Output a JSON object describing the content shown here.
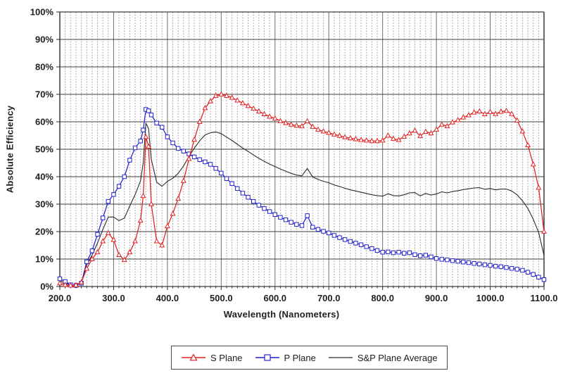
{
  "chart_data": {
    "type": "line",
    "title": "",
    "xlabel": "Wavelength (Nanometers)",
    "ylabel": "Absolute Efficiency",
    "xlim": [
      200,
      1100
    ],
    "ylim": [
      0,
      100
    ],
    "grid": true,
    "x_minor_grid_step": 10,
    "x_major_grid_step": 100,
    "y_grid_step": 10,
    "legend_position": "bottom",
    "x_ticks": {
      "values": [
        200,
        300,
        400,
        500,
        600,
        700,
        800,
        900,
        1000,
        1100
      ],
      "labels": [
        "200.0",
        "300.0",
        "400.0",
        "500.0",
        "600.0",
        "700.0",
        "800.0",
        "900.0",
        "1000.0",
        "1100.0"
      ]
    },
    "y_ticks": {
      "values": [
        0,
        10,
        20,
        30,
        40,
        50,
        60,
        70,
        80,
        90,
        100
      ],
      "labels": [
        "0%",
        "10%",
        "20%",
        "30%",
        "40%",
        "50%",
        "60%",
        "70%",
        "80%",
        "90%",
        "100%"
      ]
    },
    "x": [
      200,
      210,
      220,
      230,
      240,
      250,
      260,
      270,
      280,
      290,
      300,
      310,
      320,
      330,
      340,
      350,
      355,
      360,
      365,
      370,
      380,
      390,
      400,
      410,
      420,
      430,
      440,
      450,
      460,
      470,
      480,
      490,
      500,
      510,
      520,
      530,
      540,
      550,
      560,
      570,
      580,
      590,
      600,
      610,
      620,
      630,
      640,
      650,
      660,
      670,
      680,
      690,
      700,
      710,
      720,
      730,
      740,
      750,
      760,
      770,
      780,
      790,
      800,
      810,
      820,
      830,
      840,
      850,
      860,
      870,
      880,
      890,
      900,
      910,
      920,
      930,
      940,
      950,
      960,
      970,
      980,
      990,
      1000,
      1010,
      1020,
      1030,
      1040,
      1050,
      1060,
      1070,
      1080,
      1090,
      1100
    ],
    "series": [
      {
        "name": "S Plane",
        "color": "#e02020",
        "marker": "triangle",
        "values": [
          1.2,
          0.6,
          0.4,
          0.5,
          1.5,
          6.5,
          10,
          12.5,
          16.5,
          19.5,
          17,
          11.5,
          9.7,
          12.5,
          16.5,
          24,
          33,
          54.5,
          51,
          30,
          16.5,
          15,
          22,
          26.5,
          32,
          38.5,
          46.5,
          53.5,
          60,
          65,
          67.5,
          69.5,
          70,
          69.5,
          68.8,
          67.8,
          66.8,
          65.8,
          64.8,
          63.8,
          62.8,
          61.9,
          61.2,
          60.3,
          59.6,
          59,
          58.6,
          58.4,
          60.2,
          58.2,
          57.2,
          56.5,
          56,
          55.4,
          54.9,
          54.4,
          54,
          53.7,
          53.4,
          53.2,
          53,
          53,
          53.2,
          55,
          53.8,
          53.4,
          54.6,
          55.8,
          56.8,
          54.8,
          56.4,
          55.8,
          57.2,
          59,
          58.4,
          59.8,
          60.6,
          61.6,
          62.4,
          63.4,
          63.8,
          62.8,
          63.6,
          62.9,
          63.7,
          64,
          62.9,
          60.5,
          56.5,
          51.5,
          44.5,
          36,
          20
        ]
      },
      {
        "name": "P Plane",
        "color": "#2121d0",
        "marker": "square",
        "values": [
          2.8,
          1.8,
          0.6,
          0.4,
          1.2,
          9,
          13,
          19,
          25,
          31,
          33.5,
          36.5,
          40,
          46,
          50.5,
          53,
          57,
          64.5,
          64,
          62.5,
          59.5,
          58,
          54.5,
          52.3,
          50.3,
          49.3,
          48.3,
          47.2,
          46.2,
          45.4,
          44.5,
          43,
          41.3,
          39.3,
          37.5,
          35.7,
          34,
          32.5,
          31,
          29.6,
          28.4,
          27.3,
          26.2,
          25.2,
          24.3,
          23.4,
          22.6,
          22.2,
          25.8,
          21.6,
          20.8,
          20.1,
          19.5,
          18.6,
          17.8,
          17.1,
          16.4,
          15.8,
          15.2,
          14.5,
          13.8,
          13.1,
          12.5,
          12.6,
          12.3,
          12.5,
          12.1,
          12.3,
          11.6,
          11.2,
          11.4,
          10.8,
          10.2,
          9.9,
          9.7,
          9.4,
          9.2,
          8.9,
          8.7,
          8.4,
          8.2,
          7.9,
          7.7,
          7.4,
          7.2,
          6.9,
          6.6,
          6.3,
          5.9,
          5.2,
          4.4,
          3.4,
          2.5
        ]
      },
      {
        "name": "S&P Plane Average",
        "color": "#2b2b2b",
        "marker": "none",
        "values": [
          2,
          1.2,
          0.5,
          0.5,
          1.4,
          7.8,
          11.5,
          15.8,
          20.8,
          25.3,
          25.3,
          24,
          24.9,
          29.3,
          33.5,
          38.5,
          45,
          59.5,
          57.5,
          46.3,
          38,
          36.5,
          38.3,
          39.4,
          41.2,
          43.9,
          47.4,
          50.4,
          53.1,
          55.2,
          56,
          56.3,
          55.7,
          54.4,
          53.2,
          51.8,
          50.4,
          49.2,
          47.9,
          46.7,
          45.6,
          44.6,
          43.7,
          42.8,
          42,
          41.2,
          40.6,
          40.3,
          43,
          39.9,
          39,
          38.3,
          37.8,
          37,
          36.4,
          35.8,
          35.2,
          34.8,
          34.3,
          33.9,
          33.4,
          33.1,
          32.9,
          33.8,
          33.1,
          33,
          33.4,
          34.1,
          34.2,
          33,
          33.9,
          33.3,
          33.7,
          34.5,
          34.1,
          34.6,
          34.9,
          35.3,
          35.6,
          35.9,
          36,
          35.4,
          35.7,
          35.2,
          35.5,
          35.5,
          34.8,
          33.4,
          31.2,
          28.4,
          24.5,
          19.7,
          11.3
        ]
      }
    ],
    "style": {
      "minor_grid_color": "#9a9a9a",
      "major_grid_color": "#6e6e6e",
      "h_grid_color": "#3c3c3c",
      "axis_color": "#2a2a2a",
      "tick_label_color": "#1f1f1f"
    }
  }
}
